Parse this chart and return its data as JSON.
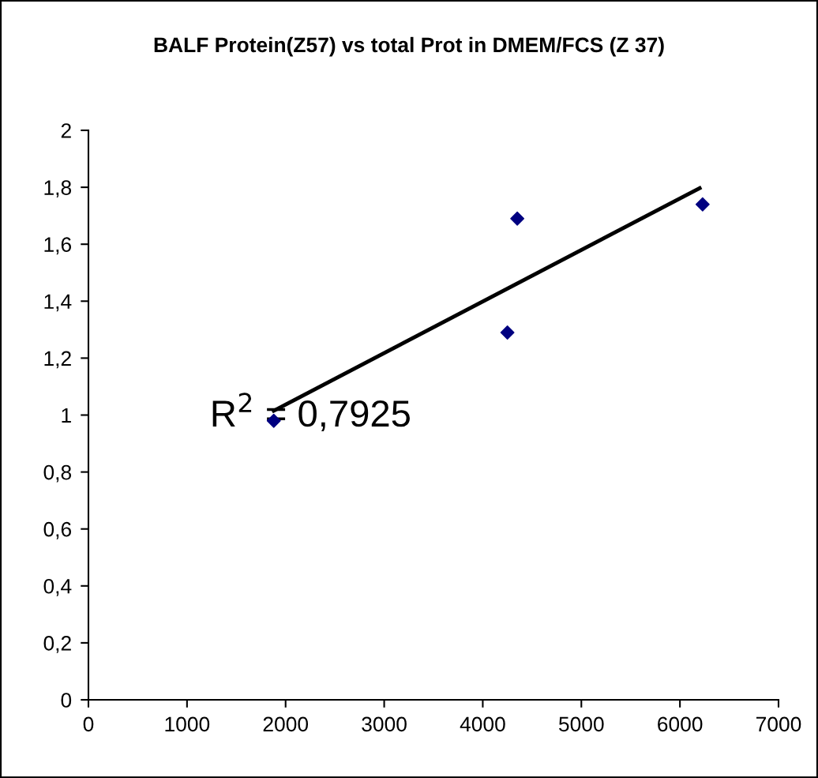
{
  "chart_data": {
    "type": "scatter",
    "title": "BALF Protein(Z57) vs total Prot in DMEM/FCS (Z 37)",
    "series": [
      {
        "color": "#000080",
        "marker": "diamond",
        "x": [
          1880,
          4250,
          4350,
          6230
        ],
        "values": [
          0.98,
          1.29,
          1.69,
          1.74
        ]
      },
      {
        "type": "line",
        "color": "#000000",
        "marker": "none",
        "line_style": "solid",
        "x": [
          1880,
          6200
        ],
        "values": [
          1.015,
          1.797
        ]
      }
    ],
    "annotations": [
      "R$^{2}$ = 0,7925"
    ],
    "xlim": [
      0,
      7000
    ],
    "xticks": [
      0,
      1000,
      2000,
      3000,
      4000,
      5000,
      6000,
      7000
    ],
    "ylim": [
      0,
      2
    ],
    "yticks": [
      0,
      {
        "value": 0.2,
        "label": "0,2"
      },
      {
        "value": 0.4,
        "label": "0,4"
      },
      {
        "value": 0.6,
        "label": "0,6"
      },
      {
        "value": 0.8,
        "label": "0,8"
      },
      1,
      {
        "value": 1.2,
        "label": "1,2"
      },
      {
        "value": 1.4,
        "label": "1,4"
      },
      {
        "value": 1.6,
        "label": "1,6"
      },
      {
        "value": 1.8,
        "label": "1,8"
      },
      2
    ],
    "grid": false,
    "legend": false
  }
}
